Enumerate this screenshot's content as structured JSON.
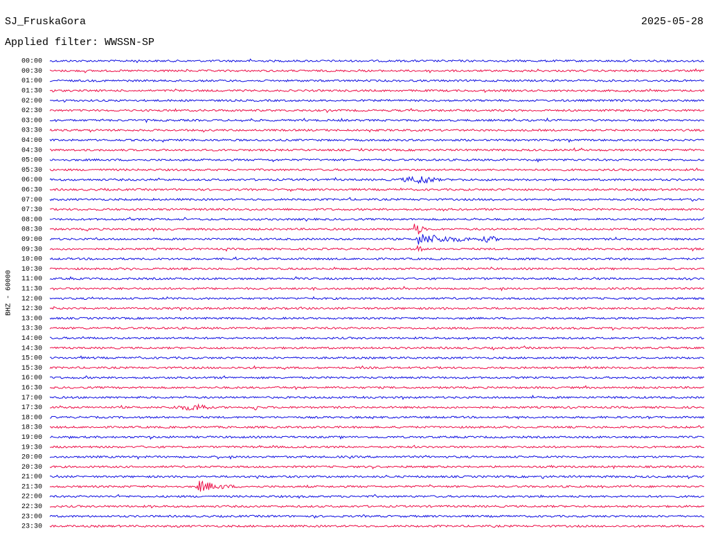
{
  "header": {
    "station": "SJ_FruskaGora",
    "date": "2025-05-28",
    "filter": "Applied filter: WWSSN-SP"
  },
  "axis_label": "BHZ - 60000",
  "colors": [
    "#0a0ae0",
    "#ec0a44"
  ],
  "rows": [
    "00:00",
    "00:30",
    "01:00",
    "01:30",
    "02:00",
    "02:30",
    "03:00",
    "03:30",
    "04:00",
    "04:30",
    "05:00",
    "05:30",
    "06:00",
    "06:30",
    "07:00",
    "07:30",
    "08:00",
    "08:30",
    "09:00",
    "09:30",
    "10:00",
    "10:30",
    "11:00",
    "11:30",
    "12:00",
    "12:30",
    "13:00",
    "13:30",
    "14:00",
    "14:30",
    "15:00",
    "15:30",
    "16:00",
    "16:30",
    "17:00",
    "17:30",
    "18:00",
    "18:30",
    "19:00",
    "19:30",
    "20:00",
    "20:30",
    "21:00",
    "21:30",
    "22:00",
    "22:30",
    "23:00",
    "23:30"
  ]
}
